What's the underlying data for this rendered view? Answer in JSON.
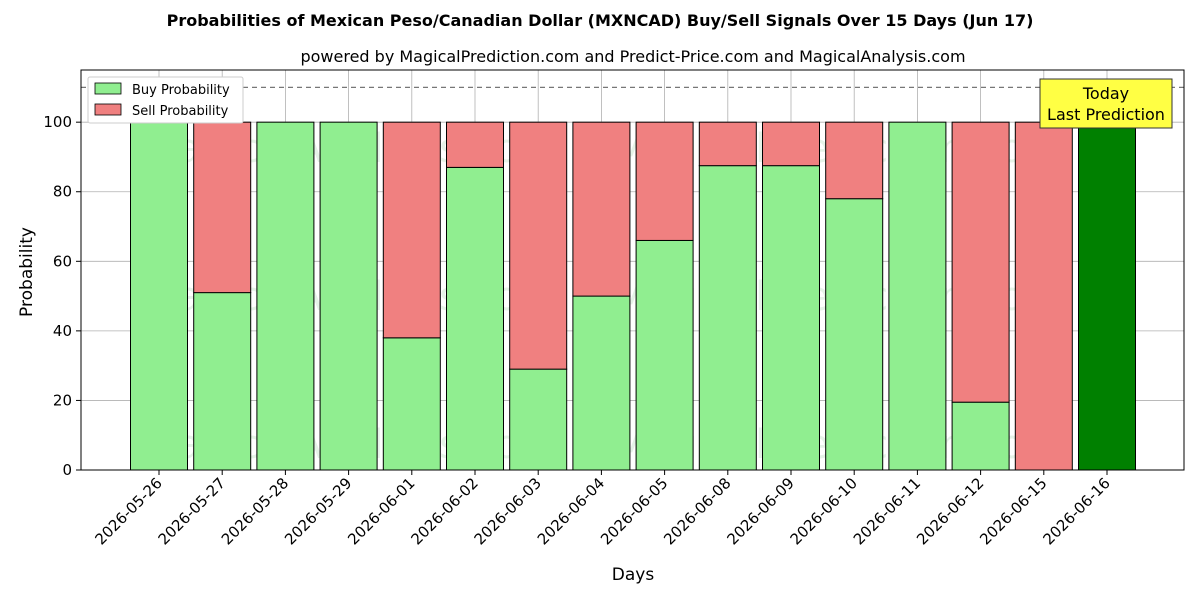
{
  "chart_data": {
    "type": "bar",
    "stacked": true,
    "title": "Probabilities of Mexican Peso/Canadian Dollar (MXNCAD) Buy/Sell Signals Over 15 Days (Jun 17)",
    "subtitle": "powered by MagicalPrediction.com and Predict-Price.com and MagicalAnalysis.com",
    "xlabel": "Days",
    "ylabel": "Probability",
    "ylim": [
      0,
      115
    ],
    "yticks": [
      0,
      20,
      40,
      60,
      80,
      100
    ],
    "reference_line": 110,
    "grid": true,
    "legend_position": "top-left",
    "categories": [
      "2026-05-26",
      "2026-05-27",
      "2026-05-28",
      "2026-05-29",
      "2026-06-01",
      "2026-06-02",
      "2026-06-03",
      "2026-06-04",
      "2026-06-05",
      "2026-06-08",
      "2026-06-09",
      "2026-06-10",
      "2026-06-11",
      "2026-06-12",
      "2026-06-15",
      "2026-06-16"
    ],
    "series": [
      {
        "name": "Buy Probability",
        "color": "#90ee90",
        "values": [
          100,
          51,
          100,
          100,
          38,
          87,
          29,
          50,
          66,
          87.5,
          87.5,
          78,
          100,
          19.5,
          0,
          100
        ]
      },
      {
        "name": "Sell Probability",
        "color": "#f08080",
        "values": [
          0,
          49,
          0,
          0,
          62,
          13,
          71,
          50,
          34,
          12.5,
          12.5,
          22,
          0,
          80.5,
          100,
          0
        ]
      }
    ],
    "highlight": {
      "category": "2026-06-16",
      "color": "#008000"
    },
    "annotation": {
      "line1": "Today",
      "line2": "Last Prediction",
      "background": "#ffff44"
    },
    "watermarks": [
      "MagicalAnalysis.com",
      "MagicalPrediction.com"
    ]
  }
}
